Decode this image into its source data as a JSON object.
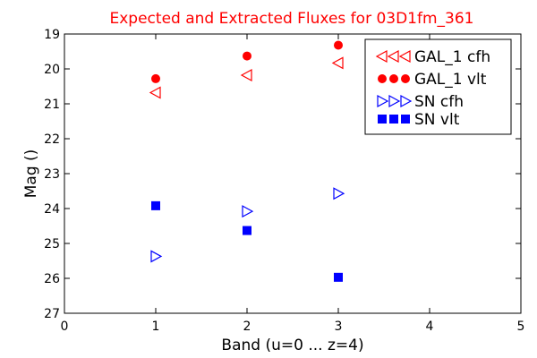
{
  "chart_data": {
    "type": "scatter",
    "title": "Expected and Extracted Fluxes for 03D1fm_361",
    "title_color": "#ff0000",
    "xlabel": "Band (u=0 ... z=4)",
    "ylabel": "Mag ()",
    "xlim": [
      0,
      5
    ],
    "ylim": [
      27,
      19
    ],
    "y_inverted": true,
    "xticks": [
      "0",
      "1",
      "2",
      "3",
      "4",
      "5"
    ],
    "yticks": [
      "19",
      "20",
      "21",
      "22",
      "23",
      "24",
      "25",
      "26",
      "27"
    ],
    "grid": false,
    "legend_position": "top-right",
    "series": [
      {
        "name": "GAL_1 cfh",
        "marker": "triangle-left",
        "color": "#ff0000",
        "filled": false,
        "x": [
          1,
          2,
          3
        ],
        "y": [
          20.68,
          20.18,
          19.83
        ]
      },
      {
        "name": "GAL_1 vlt",
        "marker": "circle",
        "color": "#ff0000",
        "filled": true,
        "x": [
          1,
          2,
          3
        ],
        "y": [
          20.28,
          19.63,
          19.32
        ]
      },
      {
        "name": "SN cfh",
        "marker": "triangle-right",
        "color": "#0000ff",
        "filled": false,
        "x": [
          1,
          2,
          3
        ],
        "y": [
          25.37,
          24.08,
          23.57
        ]
      },
      {
        "name": "SN vlt",
        "marker": "square",
        "color": "#0000ff",
        "filled": true,
        "x": [
          1,
          2,
          3
        ],
        "y": [
          23.92,
          24.63,
          25.97
        ]
      }
    ]
  }
}
